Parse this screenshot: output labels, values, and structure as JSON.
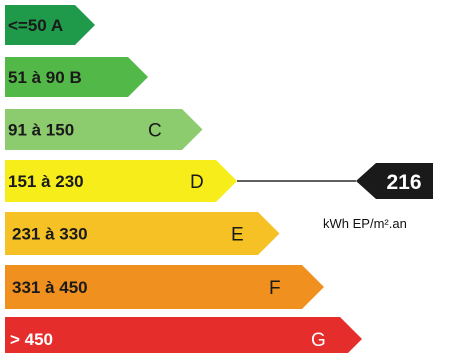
{
  "chart_data": {
    "type": "bar",
    "categories": [
      "A",
      "B",
      "C",
      "D",
      "E",
      "F",
      "G"
    ],
    "bands": [
      {
        "letter": "A",
        "range": "<=50 A",
        "letter_label": "",
        "max": 50,
        "color": "#1e9a4a",
        "text_color": "#1a1a1a"
      },
      {
        "letter": "B",
        "range": "51 à 90 B",
        "letter_label": "",
        "max": 90,
        "color": "#52b847",
        "text_color": "#1a1a1a"
      },
      {
        "letter": "C",
        "range": "91 à 150",
        "letter_label": "C",
        "max": 150,
        "color": "#8ccc6e",
        "text_color": "#1a1a1a"
      },
      {
        "letter": "D",
        "range": "151 à 230",
        "letter_label": "D",
        "max": 230,
        "color": "#f7ed1b",
        "text_color": "#1a1a1a"
      },
      {
        "letter": "E",
        "range": "231 à 330",
        "letter_label": "E",
        "max": 330,
        "color": "#f6c124",
        "text_color": "#1a1a1a"
      },
      {
        "letter": "F",
        "range": "331 à 450",
        "letter_label": "F",
        "max": 450,
        "color": "#f0901f",
        "text_color": "#1a1a1a"
      },
      {
        "letter": "G",
        "range": "> 450",
        "letter_label": "G",
        "max": null,
        "color": "#e52d2c",
        "text_color": "#ffffff"
      }
    ],
    "indicator": {
      "value": "216",
      "band": "D",
      "unit": "kWh EP/m².an",
      "color": "#1a1a1a",
      "text_color": "#ffffff"
    }
  }
}
